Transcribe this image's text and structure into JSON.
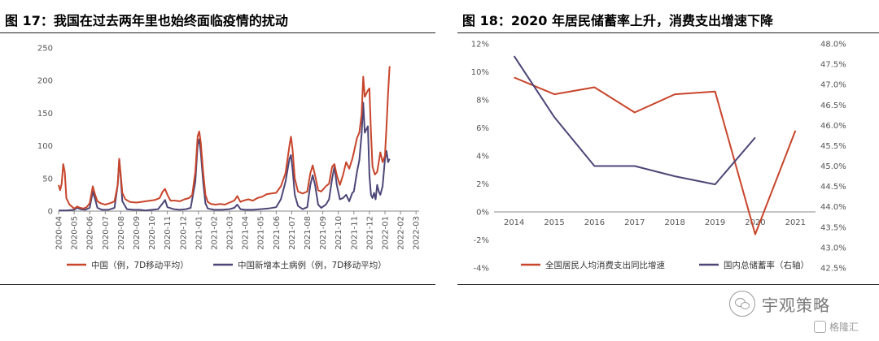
{
  "charts": [
    {
      "title": "图 17：我国在过去两年里也始终面临疫情的扰动",
      "chart_data": {
        "type": "line",
        "x_ticks": [
          "2020-04",
          "2020-05",
          "2020-06",
          "2020-07",
          "2020-08",
          "2020-09",
          "2020-10",
          "2020-11",
          "2020-12",
          "2021-01",
          "2021-02",
          "2021-03",
          "2021-04",
          "2021-05",
          "2021-06",
          "2021-07",
          "2021-08",
          "2021-09",
          "2021-10",
          "2021-11",
          "2021-12",
          "2022-01",
          "2022-02",
          "2022-03"
        ],
        "x_range": [
          0,
          23.2
        ],
        "ylim": [
          0,
          250
        ],
        "y_ticks": [
          0,
          50,
          100,
          150,
          200,
          250
        ],
        "legend_position": "bottom",
        "series": [
          {
            "name": "中国（例，7D移动平均）",
            "color": "#c8452b",
            "points": [
              [
                0,
                40
              ],
              [
                0.1,
                32
              ],
              [
                0.2,
                42
              ],
              [
                0.3,
                72
              ],
              [
                0.4,
                60
              ],
              [
                0.5,
                20
              ],
              [
                0.7,
                10
              ],
              [
                0.9,
                6
              ],
              [
                1.0,
                4
              ],
              [
                1.2,
                7
              ],
              [
                1.4,
                5
              ],
              [
                1.6,
                4
              ],
              [
                1.8,
                6
              ],
              [
                2.0,
                12
              ],
              [
                2.2,
                38
              ],
              [
                2.35,
                25
              ],
              [
                2.5,
                15
              ],
              [
                2.7,
                12
              ],
              [
                3.0,
                10
              ],
              [
                3.3,
                12
              ],
              [
                3.6,
                15
              ],
              [
                3.8,
                40
              ],
              [
                3.9,
                80
              ],
              [
                4.0,
                55
              ],
              [
                4.1,
                28
              ],
              [
                4.3,
                18
              ],
              [
                4.6,
                14
              ],
              [
                5.0,
                13
              ],
              [
                5.3,
                14
              ],
              [
                5.6,
                15
              ],
              [
                5.9,
                16
              ],
              [
                6.2,
                17
              ],
              [
                6.5,
                20
              ],
              [
                6.7,
                30
              ],
              [
                6.85,
                34
              ],
              [
                7.0,
                25
              ],
              [
                7.2,
                16
              ],
              [
                7.5,
                16
              ],
              [
                7.8,
                15
              ],
              [
                8.1,
                18
              ],
              [
                8.4,
                20
              ],
              [
                8.6,
                25
              ],
              [
                8.8,
                60
              ],
              [
                8.95,
                115
              ],
              [
                9.05,
                122
              ],
              [
                9.15,
                105
              ],
              [
                9.3,
                60
              ],
              [
                9.45,
                25
              ],
              [
                9.6,
                14
              ],
              [
                9.8,
                11
              ],
              [
                10.1,
                10
              ],
              [
                10.4,
                11
              ],
              [
                10.7,
                10
              ],
              [
                11.0,
                13
              ],
              [
                11.3,
                16
              ],
              [
                11.5,
                23
              ],
              [
                11.7,
                14
              ],
              [
                11.9,
                16
              ],
              [
                12.2,
                18
              ],
              [
                12.5,
                16
              ],
              [
                12.8,
                20
              ],
              [
                13.1,
                22
              ],
              [
                13.4,
                26
              ],
              [
                13.7,
                27
              ],
              [
                14.0,
                28
              ],
              [
                14.3,
                38
              ],
              [
                14.6,
                58
              ],
              [
                14.85,
                100
              ],
              [
                14.95,
                114
              ],
              [
                15.05,
                95
              ],
              [
                15.2,
                50
              ],
              [
                15.4,
                30
              ],
              [
                15.7,
                27
              ],
              [
                16.0,
                30
              ],
              [
                16.2,
                58
              ],
              [
                16.35,
                70
              ],
              [
                16.5,
                55
              ],
              [
                16.7,
                32
              ],
              [
                16.9,
                30
              ],
              [
                17.2,
                38
              ],
              [
                17.4,
                42
              ],
              [
                17.6,
                68
              ],
              [
                17.75,
                72
              ],
              [
                17.9,
                55
              ],
              [
                18.1,
                40
              ],
              [
                18.3,
                55
              ],
              [
                18.5,
                75
              ],
              [
                18.7,
                65
              ],
              [
                18.9,
                80
              ],
              [
                19.0,
                90
              ],
              [
                19.2,
                112
              ],
              [
                19.35,
                120
              ],
              [
                19.5,
                148
              ],
              [
                19.6,
                206
              ],
              [
                19.7,
                175
              ],
              [
                19.8,
                180
              ],
              [
                19.9,
                185
              ],
              [
                20.0,
                188
              ],
              [
                20.1,
                120
              ],
              [
                20.2,
                68
              ],
              [
                20.35,
                56
              ],
              [
                20.5,
                60
              ],
              [
                20.7,
                90
              ],
              [
                20.85,
                75
              ],
              [
                21.0,
                85
              ],
              [
                21.1,
                130
              ],
              [
                21.2,
                180
              ],
              [
                21.3,
                222
              ]
            ]
          },
          {
            "name": "中国新增本土病例（例，7D移动平均）",
            "color": "#4c4677",
            "points": [
              [
                0,
                1
              ],
              [
                0.5,
                1
              ],
              [
                1.0,
                2
              ],
              [
                1.2,
                5
              ],
              [
                1.4,
                3
              ],
              [
                1.7,
                2
              ],
              [
                2.0,
                5
              ],
              [
                2.2,
                30
              ],
              [
                2.35,
                18
              ],
              [
                2.5,
                5
              ],
              [
                2.8,
                2
              ],
              [
                3.2,
                2
              ],
              [
                3.6,
                5
              ],
              [
                3.8,
                40
              ],
              [
                3.9,
                80
              ],
              [
                4.0,
                50
              ],
              [
                4.1,
                15
              ],
              [
                4.4,
                3
              ],
              [
                4.8,
                2
              ],
              [
                5.2,
                2
              ],
              [
                5.6,
                1
              ],
              [
                6.0,
                2
              ],
              [
                6.4,
                3
              ],
              [
                6.7,
                12
              ],
              [
                6.85,
                17
              ],
              [
                7.0,
                6
              ],
              [
                7.4,
                3
              ],
              [
                7.8,
                2
              ],
              [
                8.2,
                3
              ],
              [
                8.5,
                5
              ],
              [
                8.8,
                45
              ],
              [
                8.95,
                102
              ],
              [
                9.05,
                110
              ],
              [
                9.15,
                90
              ],
              [
                9.3,
                45
              ],
              [
                9.45,
                12
              ],
              [
                9.6,
                4
              ],
              [
                10.0,
                2
              ],
              [
                10.5,
                2
              ],
              [
                11.0,
                3
              ],
              [
                11.3,
                5
              ],
              [
                11.5,
                10
              ],
              [
                11.7,
                3
              ],
              [
                12.0,
                2
              ],
              [
                12.5,
                2
              ],
              [
                13.0,
                3
              ],
              [
                13.5,
                4
              ],
              [
                14.0,
                6
              ],
              [
                14.3,
                18
              ],
              [
                14.6,
                45
              ],
              [
                14.85,
                80
              ],
              [
                14.95,
                86
              ],
              [
                15.05,
                65
              ],
              [
                15.2,
                25
              ],
              [
                15.4,
                8
              ],
              [
                15.7,
                3
              ],
              [
                16.0,
                6
              ],
              [
                16.2,
                40
              ],
              [
                16.35,
                55
              ],
              [
                16.5,
                40
              ],
              [
                16.7,
                10
              ],
              [
                16.9,
                5
              ],
              [
                17.2,
                10
              ],
              [
                17.4,
                18
              ],
              [
                17.6,
                50
              ],
              [
                17.75,
                68
              ],
              [
                17.9,
                40
              ],
              [
                18.1,
                18
              ],
              [
                18.3,
                20
              ],
              [
                18.5,
                25
              ],
              [
                18.7,
                15
              ],
              [
                18.9,
                28
              ],
              [
                19.0,
                30
              ],
              [
                19.2,
                60
              ],
              [
                19.35,
                78
              ],
              [
                19.5,
                118
              ],
              [
                19.6,
                166
              ],
              [
                19.7,
                120
              ],
              [
                19.8,
                125
              ],
              [
                19.9,
                130
              ],
              [
                20.0,
                55
              ],
              [
                20.1,
                25
              ],
              [
                20.2,
                20
              ],
              [
                20.3,
                28
              ],
              [
                20.4,
                18
              ],
              [
                20.5,
                40
              ],
              [
                20.6,
                30
              ],
              [
                20.7,
                25
              ],
              [
                20.85,
                38
              ],
              [
                21.0,
                80
              ],
              [
                21.1,
                92
              ],
              [
                21.2,
                75
              ],
              [
                21.3,
                80
              ]
            ]
          }
        ]
      }
    },
    {
      "title": "图 18：2020 年居民储蓄率上升，消费支出增速下降",
      "chart_data": {
        "type": "line",
        "categories": [
          "2014",
          "2015",
          "2016",
          "2017",
          "2018",
          "2019",
          "2020",
          "2021"
        ],
        "ylim": [
          -4,
          12
        ],
        "y_ticks": [
          "12%",
          "10%",
          "8%",
          "6%",
          "4%",
          "2%",
          "0%",
          "-2%",
          "-4%"
        ],
        "y_tick_values": [
          12,
          10,
          8,
          6,
          4,
          2,
          0,
          -2,
          -4
        ],
        "y2lim": [
          42.5,
          48.0
        ],
        "y2_ticks": [
          "48.0%",
          "47.5%",
          "47.0%",
          "46.5%",
          "46.0%",
          "45.5%",
          "45.0%",
          "44.5%",
          "44.0%",
          "43.5%",
          "43.0%",
          "42.5%"
        ],
        "y2_tick_values": [
          48.0,
          47.5,
          47.0,
          46.5,
          46.0,
          45.5,
          45.0,
          44.5,
          44.0,
          43.5,
          43.0,
          42.5
        ],
        "legend_position": "bottom",
        "series": [
          {
            "name": "全国居民人均消费支出同比增速",
            "axis": "left",
            "color": "#c8452b",
            "values": [
              9.6,
              8.4,
              8.9,
              7.1,
              8.4,
              8.6,
              -1.6,
              5.8
            ]
          },
          {
            "name": "国内总储蓄率（右轴）",
            "axis": "right",
            "color": "#4c4677",
            "values": [
              47.7,
              46.2,
              45.0,
              45.0,
              44.75,
              44.55,
              45.7,
              null
            ]
          }
        ]
      }
    }
  ],
  "watermark": {
    "brand": "宇观策略",
    "source": "格隆汇"
  }
}
